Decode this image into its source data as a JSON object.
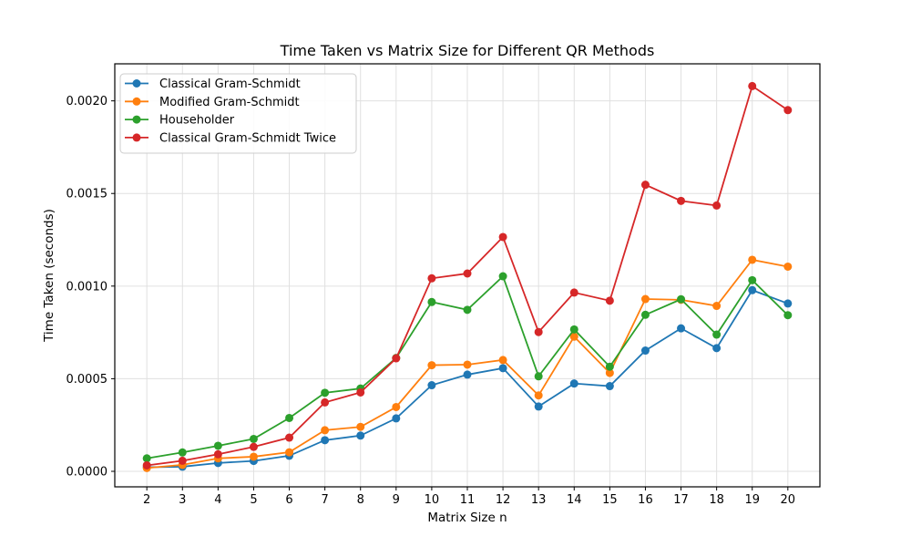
{
  "figure": {
    "title": "Time Taken vs Matrix Size for Different QR Methods",
    "xlabel": "Matrix Size n",
    "ylabel": "Time Taken (seconds)"
  },
  "chart_data": {
    "type": "line",
    "title": "Time Taken vs Matrix Size for Different QR Methods",
    "xlabel": "Matrix Size n",
    "ylabel": "Time Taken (seconds)",
    "grid": true,
    "legend_position": "upper left",
    "marker": "o",
    "xlim": [
      1.1,
      20.9
    ],
    "ylim": [
      -8.37e-05,
      0.0022
    ],
    "xticks": [
      2,
      3,
      4,
      5,
      6,
      7,
      8,
      9,
      10,
      11,
      12,
      13,
      14,
      15,
      16,
      17,
      18,
      19,
      20
    ],
    "yticks": [
      0.0,
      0.0005,
      0.001,
      0.0015,
      0.002
    ],
    "ytick_labels": [
      "0.0000",
      "0.0005",
      "0.0010",
      "0.0015",
      "0.0020"
    ],
    "x": [
      2,
      3,
      4,
      5,
      6,
      7,
      8,
      9,
      10,
      11,
      12,
      13,
      14,
      15,
      16,
      17,
      18,
      19,
      20
    ],
    "series": [
      {
        "name": "Classical Gram-Schmidt",
        "color": "#1f77b4",
        "values": [
          2.2e-05,
          2.5e-05,
          4.5e-05,
          5.6e-05,
          8.4e-05,
          0.000168,
          0.000193,
          0.000286,
          0.000465,
          0.000522,
          0.000557,
          0.00035,
          0.000474,
          0.00046,
          0.000652,
          0.000772,
          0.000665,
          0.000978,
          0.000906
        ]
      },
      {
        "name": "Modified Gram-Schmidt",
        "color": "#ff7f0e",
        "values": [
          1.8e-05,
          3.5e-05,
          7e-05,
          7.9e-05,
          0.000103,
          0.000222,
          0.00024,
          0.000347,
          0.000573,
          0.000576,
          0.000601,
          0.00041,
          0.000727,
          0.000531,
          0.00093,
          0.000926,
          0.000893,
          0.001142,
          0.001105
        ]
      },
      {
        "name": "Householder",
        "color": "#2ca02c",
        "values": [
          7e-05,
          0.000102,
          0.000138,
          0.000175,
          0.000288,
          0.000424,
          0.000447,
          0.000612,
          0.000914,
          0.000872,
          0.001053,
          0.000513,
          0.000766,
          0.000565,
          0.000845,
          0.000929,
          0.000738,
          0.001032,
          0.000843
        ]
      },
      {
        "name": "Classical Gram-Schmidt Twice",
        "color": "#d62728",
        "values": [
          3.2e-05,
          5.7e-05,
          9.2e-05,
          0.000132,
          0.000182,
          0.000372,
          0.000426,
          0.00061,
          0.001042,
          0.001068,
          0.001265,
          0.000752,
          0.000965,
          0.000921,
          0.001547,
          0.00146,
          0.001435,
          0.00208,
          0.00195
        ]
      }
    ],
    "style": {
      "grid_color": "#e0e0e0",
      "spine_color": "#000000",
      "background": "#ffffff",
      "legend_border": "#cccccc"
    }
  }
}
